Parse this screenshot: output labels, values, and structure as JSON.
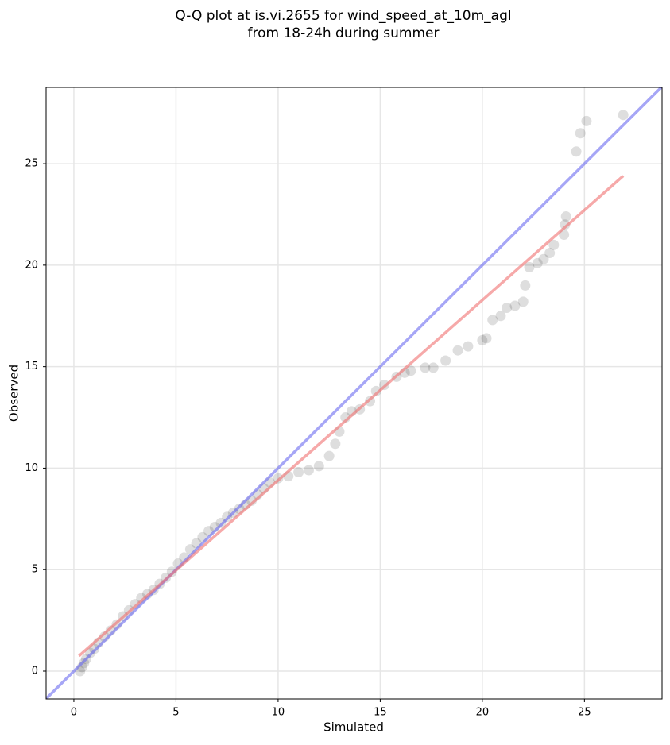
{
  "chart_data": {
    "type": "scatter",
    "title_lines": [
      "Q-Q plot at is.vi.2655 for wind_speed_at_10m_agl",
      "from 18-24h during summer"
    ],
    "x_label": "Simulated",
    "y_label": "Observed",
    "xlim": [
      -1.36,
      28.8
    ],
    "ylim": [
      -1.37,
      28.76
    ],
    "xticks": [
      0,
      5,
      10,
      15,
      20,
      25
    ],
    "yticks": [
      0,
      5,
      10,
      15,
      20,
      25
    ],
    "grid": true,
    "series": [
      {
        "color": "#000000",
        "x": [
          0.3,
          0.4,
          0.5,
          0.6,
          0.8,
          1.0,
          1.2,
          1.5,
          1.8,
          2.1,
          2.4,
          2.7,
          3.0,
          3.3,
          3.6,
          3.9,
          4.2,
          4.5,
          4.8,
          5.1,
          5.4,
          5.7,
          6.0,
          6.3,
          6.6,
          6.9,
          7.2,
          7.5,
          7.8,
          8.1,
          8.4,
          8.7,
          9.0,
          9.3,
          9.6,
          10.0,
          10.5,
          11.0,
          11.5,
          12.0,
          12.5,
          12.8,
          13.0,
          13.3,
          13.6,
          14.0,
          14.5,
          14.8,
          15.2,
          15.8,
          16.2,
          16.5,
          17.2,
          17.6,
          18.2,
          18.8,
          19.3,
          20.0,
          20.2,
          20.5,
          20.9,
          21.2,
          21.6,
          22.0,
          22.1,
          22.3,
          22.7,
          23.0,
          23.3,
          23.5,
          24.0,
          24.05,
          24.1,
          24.6,
          24.8,
          25.1,
          26.9
        ],
        "values": [
          0.0,
          0.2,
          0.4,
          0.6,
          0.9,
          1.1,
          1.4,
          1.7,
          2.0,
          2.3,
          2.7,
          3.0,
          3.3,
          3.6,
          3.8,
          4.0,
          4.3,
          4.6,
          4.9,
          5.3,
          5.6,
          6.0,
          6.3,
          6.6,
          6.9,
          7.1,
          7.3,
          7.6,
          7.8,
          8.0,
          8.2,
          8.4,
          8.7,
          9.0,
          9.3,
          9.5,
          9.6,
          9.8,
          9.9,
          10.1,
          10.6,
          11.2,
          11.8,
          12.5,
          12.8,
          12.9,
          13.3,
          13.8,
          14.1,
          14.5,
          14.7,
          14.8,
          14.95,
          14.95,
          15.3,
          15.8,
          16.0,
          16.3,
          16.4,
          17.3,
          17.5,
          17.9,
          18.0,
          18.2,
          19.0,
          19.9,
          20.1,
          20.3,
          20.6,
          21.0,
          21.5,
          22.0,
          22.4,
          25.6,
          26.5,
          27.1,
          27.4
        ]
      },
      {
        "kind": "line",
        "color": "#6b6bf0",
        "x": [
          -1.36,
          28.8
        ],
        "values": [
          -1.36,
          28.8
        ]
      },
      {
        "kind": "line",
        "color": "#f07070",
        "x": [
          0.25,
          26.9
        ],
        "values": [
          0.75,
          24.4
        ]
      }
    ]
  }
}
